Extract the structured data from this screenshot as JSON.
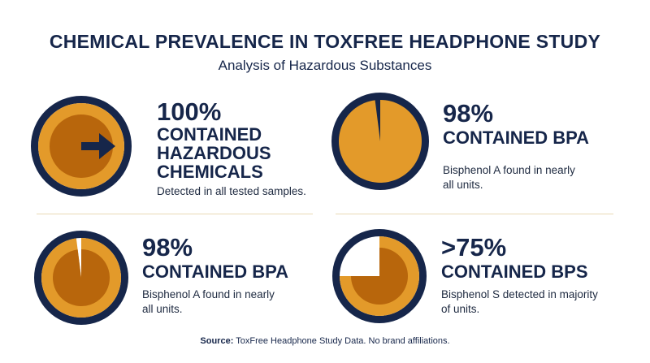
{
  "header": {
    "title": "CHEMICAL PREVALENCE IN TOXFREE HEADPHONE STUDY",
    "subtitle": "Analysis of Hazardous Substances"
  },
  "stats": [
    {
      "value": 100,
      "label": "100%",
      "heading": "CONTAINED HAZARDOUS CHEMICALS",
      "note": "Detected in all tested samples."
    },
    {
      "value": 98,
      "label": "98%",
      "heading": "CONTAINED BPA",
      "note": "Bisphenol A found in nearly all units."
    },
    {
      "value": 98,
      "label": "98%",
      "heading": "CONTAINED BPA",
      "note": "Bisphenol A found in nearly all units."
    },
    {
      "value": 75,
      "label": ">75%",
      "heading": "CONTAINED BPS",
      "note": "Bisphenol S detected in majority of units."
    }
  ],
  "source": {
    "label": "Source:",
    "text": "ToxFree Headphone Study Data. No brand affiliations."
  }
}
